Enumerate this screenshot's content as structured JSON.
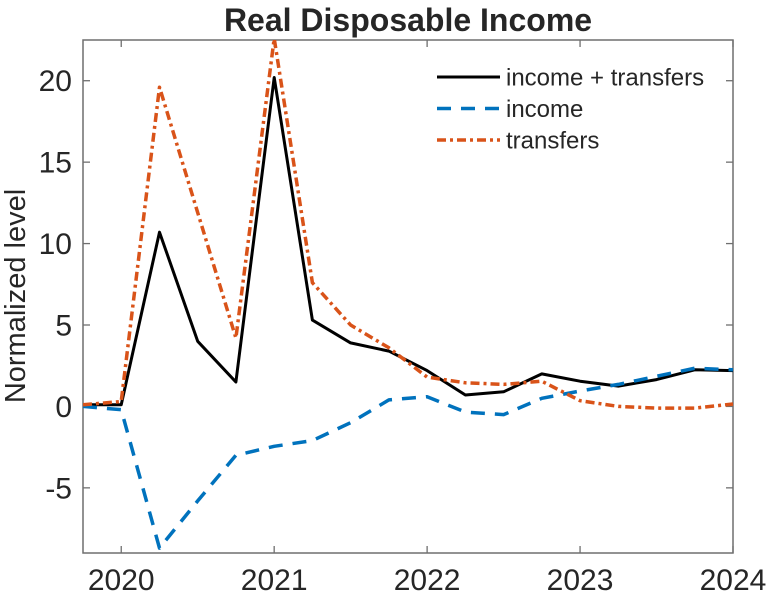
{
  "colors": {
    "axis": "#6f6f6f",
    "text": "#262626",
    "series_black": "#000000",
    "series_blue": "#0072BD",
    "series_orange": "#D95319"
  },
  "chart_data": {
    "type": "line",
    "title": "Real Disposable Income",
    "xlabel": "",
    "ylabel": "Normalized level",
    "grid": false,
    "legend_position": "upper right inside, no box",
    "xlim": [
      2019.75,
      2024
    ],
    "ylim": [
      -9,
      22.5
    ],
    "xtick_values": [
      2020,
      2021,
      2022,
      2023,
      2024
    ],
    "xtick_labels": [
      "2020",
      "2021",
      "2022",
      "2023",
      "2024"
    ],
    "ytick_values": [
      -5,
      0,
      5,
      10,
      15,
      20
    ],
    "ytick_labels": [
      "-5",
      "0",
      "5",
      "10",
      "15",
      "20"
    ],
    "x": [
      2019.75,
      2020,
      2020.25,
      2020.5,
      2020.75,
      2021,
      2021.25,
      2021.5,
      2021.75,
      2022,
      2022.25,
      2022.5,
      2022.75,
      2023,
      2023.25,
      2023.5,
      2023.75,
      2024
    ],
    "series": [
      {
        "name": "income + transfers",
        "color": "#000000",
        "dash": "",
        "width": 3,
        "values": [
          0.1,
          0.1,
          10.7,
          4.0,
          1.5,
          20.2,
          5.3,
          3.9,
          3.4,
          2.2,
          0.7,
          0.9,
          2.0,
          1.55,
          1.25,
          1.65,
          2.25,
          2.2
        ]
      },
      {
        "name": "income",
        "color": "#0072BD",
        "dash": "14 10",
        "width": 3.5,
        "values": [
          0.0,
          -0.2,
          -8.7,
          -5.8,
          -3.0,
          -2.45,
          -2.1,
          -1.0,
          0.4,
          0.6,
          -0.35,
          -0.5,
          0.5,
          0.95,
          1.35,
          1.85,
          2.35,
          2.25
        ]
      },
      {
        "name": "transfers",
        "color": "#D95319",
        "dash": "9 4 3 4",
        "width": 3.5,
        "values": [
          0.1,
          0.3,
          19.6,
          11.9,
          4.2,
          22.6,
          7.6,
          5.0,
          3.6,
          1.8,
          1.45,
          1.35,
          1.55,
          0.35,
          0.0,
          -0.1,
          -0.1,
          0.15
        ]
      }
    ]
  }
}
